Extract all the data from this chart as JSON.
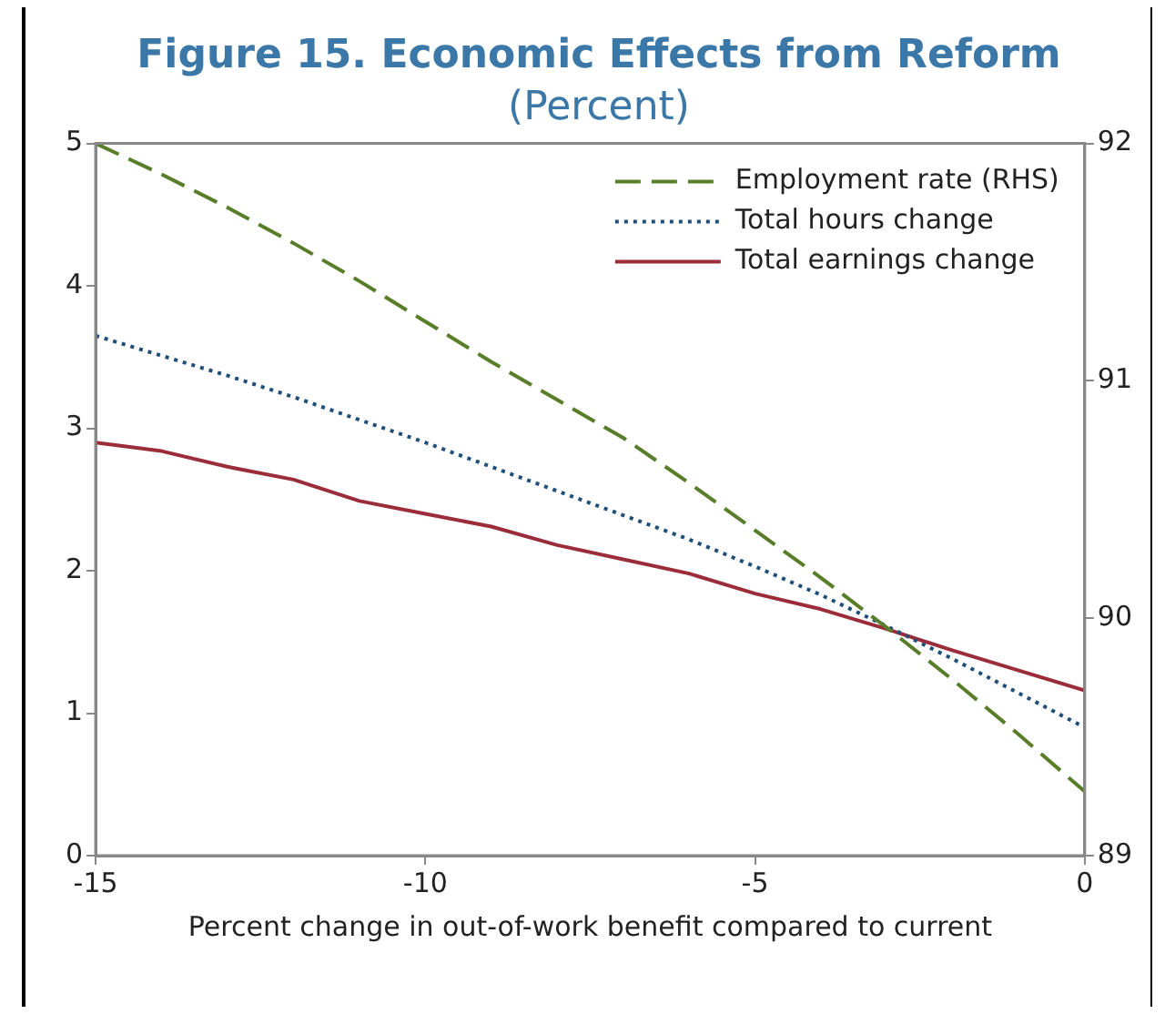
{
  "chart_data": {
    "type": "line",
    "title": "Figure 15. Economic Effects from Reform",
    "subtitle": "(Percent)",
    "xlabel": "Percent change in out-of-work benefit compared to current",
    "x": [
      -15,
      -14,
      -13,
      -12,
      -11,
      -10,
      -9,
      -8,
      -7,
      -6,
      -5,
      -4,
      -3,
      -2,
      -1,
      0
    ],
    "series": [
      {
        "name": "Employment rate (RHS)",
        "color": "#5a7d2a",
        "axis": "y2",
        "line_style": "dashed",
        "values": [
          92.0,
          91.87,
          91.73,
          91.58,
          91.42,
          91.25,
          91.08,
          90.92,
          90.76,
          90.57,
          90.37,
          90.17,
          89.96,
          89.74,
          89.51,
          89.27
        ]
      },
      {
        "name": "Total hours change",
        "color": "#1f4e79",
        "line_style": "dotted",
        "values": [
          3.65,
          3.51,
          3.37,
          3.22,
          3.06,
          2.9,
          2.73,
          2.56,
          2.39,
          2.22,
          2.03,
          1.83,
          1.61,
          1.38,
          1.14,
          0.9
        ]
      },
      {
        "name": "Total earnings change",
        "color": "#9b2d3a",
        "line_style": "solid",
        "values": [
          2.9,
          2.84,
          2.73,
          2.64,
          2.49,
          2.4,
          2.31,
          2.18,
          2.08,
          1.98,
          1.84,
          1.73,
          1.59,
          1.44,
          1.3,
          1.16
        ]
      }
    ],
    "xlim": [
      -15,
      0
    ],
    "xticks": [
      -15,
      -10,
      -5,
      0
    ],
    "ylim": [
      0,
      5
    ],
    "yticks": [
      0,
      1,
      2,
      3,
      4,
      5
    ],
    "y2lim": [
      89,
      92
    ],
    "y2ticks": [
      89,
      90,
      91,
      92
    ],
    "grid": false,
    "legend": "top right",
    "marker": "none"
  }
}
